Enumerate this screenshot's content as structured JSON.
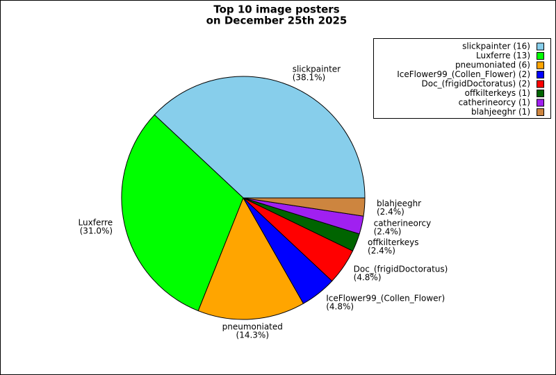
{
  "chart_data": {
    "type": "pie",
    "title": [
      "Top 10 image posters",
      "on December 25th 2025"
    ],
    "categories": [
      "slickpainter",
      "Luxferre",
      "pneumoniated",
      "IceFlower99_(Collen_Flower)",
      "Doc_(frigidDoctoratus)",
      "offkilterkeys",
      "catherineorcy",
      "blahjeeghr"
    ],
    "values": [
      38.1,
      31.0,
      14.3,
      4.8,
      4.8,
      2.4,
      2.4,
      2.4
    ],
    "value_labels": [
      "(38.1%)",
      "(31.0%)",
      "(14.3%)",
      "(4.8%)",
      "(4.8%)",
      "(2.4%)",
      "(2.4%)",
      "(2.4%)"
    ],
    "legend_labels": [
      "slickpainter (16)",
      "Luxferre (13)",
      "pneumoniated (6)",
      "IceFlower99_(Collen_Flower) (2)",
      "Doc_(frigidDoctoratus) (2)",
      "offkilterkeys (1)",
      "catherineorcy (1)",
      "blahjeeghr (1)"
    ],
    "colors": [
      "#87ceeb",
      "#00ff00",
      "#ffa500",
      "#0000ff",
      "#ff0000",
      "#006400",
      "#a020f0",
      "#cd853f"
    ],
    "legend": "upper right"
  }
}
